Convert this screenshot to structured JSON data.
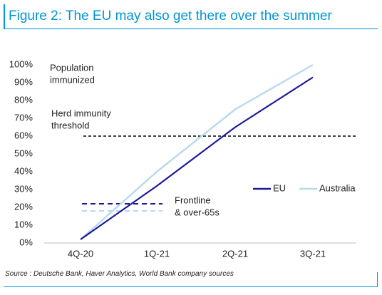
{
  "header": {
    "title": "Figure 2: The EU may also get there over the summer"
  },
  "footer": {
    "source": "Source : Deutsche Bank, Haver Analytics, World Bank company sources"
  },
  "colors": {
    "accent": "#0096d6",
    "eu": "#1a1a9a",
    "australia": "#b8d9ee",
    "threshold": "#000000"
  },
  "chart_data": {
    "type": "line",
    "categories": [
      "4Q-20",
      "1Q-21",
      "2Q-21",
      "3Q-21"
    ],
    "ylim": [
      0,
      100
    ],
    "yticks": [
      0,
      10,
      20,
      30,
      40,
      50,
      60,
      70,
      80,
      90,
      100
    ],
    "ytick_labels": [
      "0%",
      "10%",
      "20%",
      "30%",
      "40%",
      "50%",
      "60%",
      "70%",
      "80%",
      "90%",
      "100%"
    ],
    "ylabel": "Population immunized",
    "series": [
      {
        "name": "EU",
        "color": "#1a1a9a",
        "values": [
          2,
          32,
          65,
          93
        ]
      },
      {
        "name": "Australia",
        "color": "#b8d9ee",
        "values": [
          2,
          40,
          75,
          100
        ]
      }
    ],
    "reference_lines": [
      {
        "label": "Herd immunity threshold",
        "value": 60,
        "color": "#000000",
        "style": "dashed"
      },
      {
        "label": "Frontline & over-65s",
        "value": 22,
        "color": "#1a1a9a",
        "style": "dashed",
        "series": "EU"
      },
      {
        "label": "",
        "value": 18,
        "color": "#b8d9ee",
        "style": "dashed",
        "series": "Australia"
      }
    ],
    "annotations": {
      "ylabel_lines": [
        "Population",
        "immunized"
      ],
      "herd_lines": [
        "Herd immunity",
        "threshold"
      ],
      "frontline_lines": [
        "Frontline",
        "& over-65s"
      ]
    },
    "legend": {
      "position": "right",
      "entries": [
        "EU",
        "Australia"
      ]
    },
    "grid": false
  }
}
